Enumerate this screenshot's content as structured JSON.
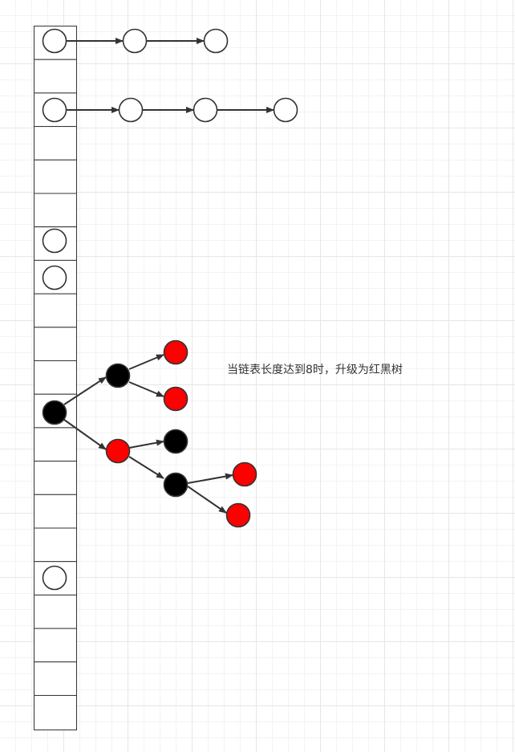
{
  "annotation": {
    "text": "当链表长度达到8时，升级为红黑树"
  },
  "hash_table": {
    "bucket_count": 21,
    "occupied_buckets": [
      {
        "bucket": 0,
        "structure": "linked-list",
        "length": 3
      },
      {
        "bucket": 2,
        "structure": "linked-list",
        "length": 4
      },
      {
        "bucket": 6,
        "structure": "linked-list",
        "length": 1
      },
      {
        "bucket": 7,
        "structure": "linked-list",
        "length": 1
      },
      {
        "bucket": 11,
        "structure": "red-black-tree"
      },
      {
        "bucket": 16,
        "structure": "linked-list",
        "length": 1
      }
    ]
  },
  "tree": {
    "node_colors": {
      "n0": "black",
      "n1": "black",
      "n2": "red",
      "n3": "red",
      "n4": "red",
      "n5": "black",
      "n6": "black",
      "n7": "red",
      "n8": "red"
    },
    "edges": [
      [
        "n0",
        "n1"
      ],
      [
        "n0",
        "n2"
      ],
      [
        "n1",
        "n3"
      ],
      [
        "n1",
        "n4"
      ],
      [
        "n2",
        "n5"
      ],
      [
        "n2",
        "n6"
      ],
      [
        "n6",
        "n7"
      ],
      [
        "n6",
        "n8"
      ]
    ]
  },
  "colors": {
    "red": "#ff0000",
    "black": "#000000",
    "empty": "#ffffff",
    "stroke": "#333333"
  }
}
